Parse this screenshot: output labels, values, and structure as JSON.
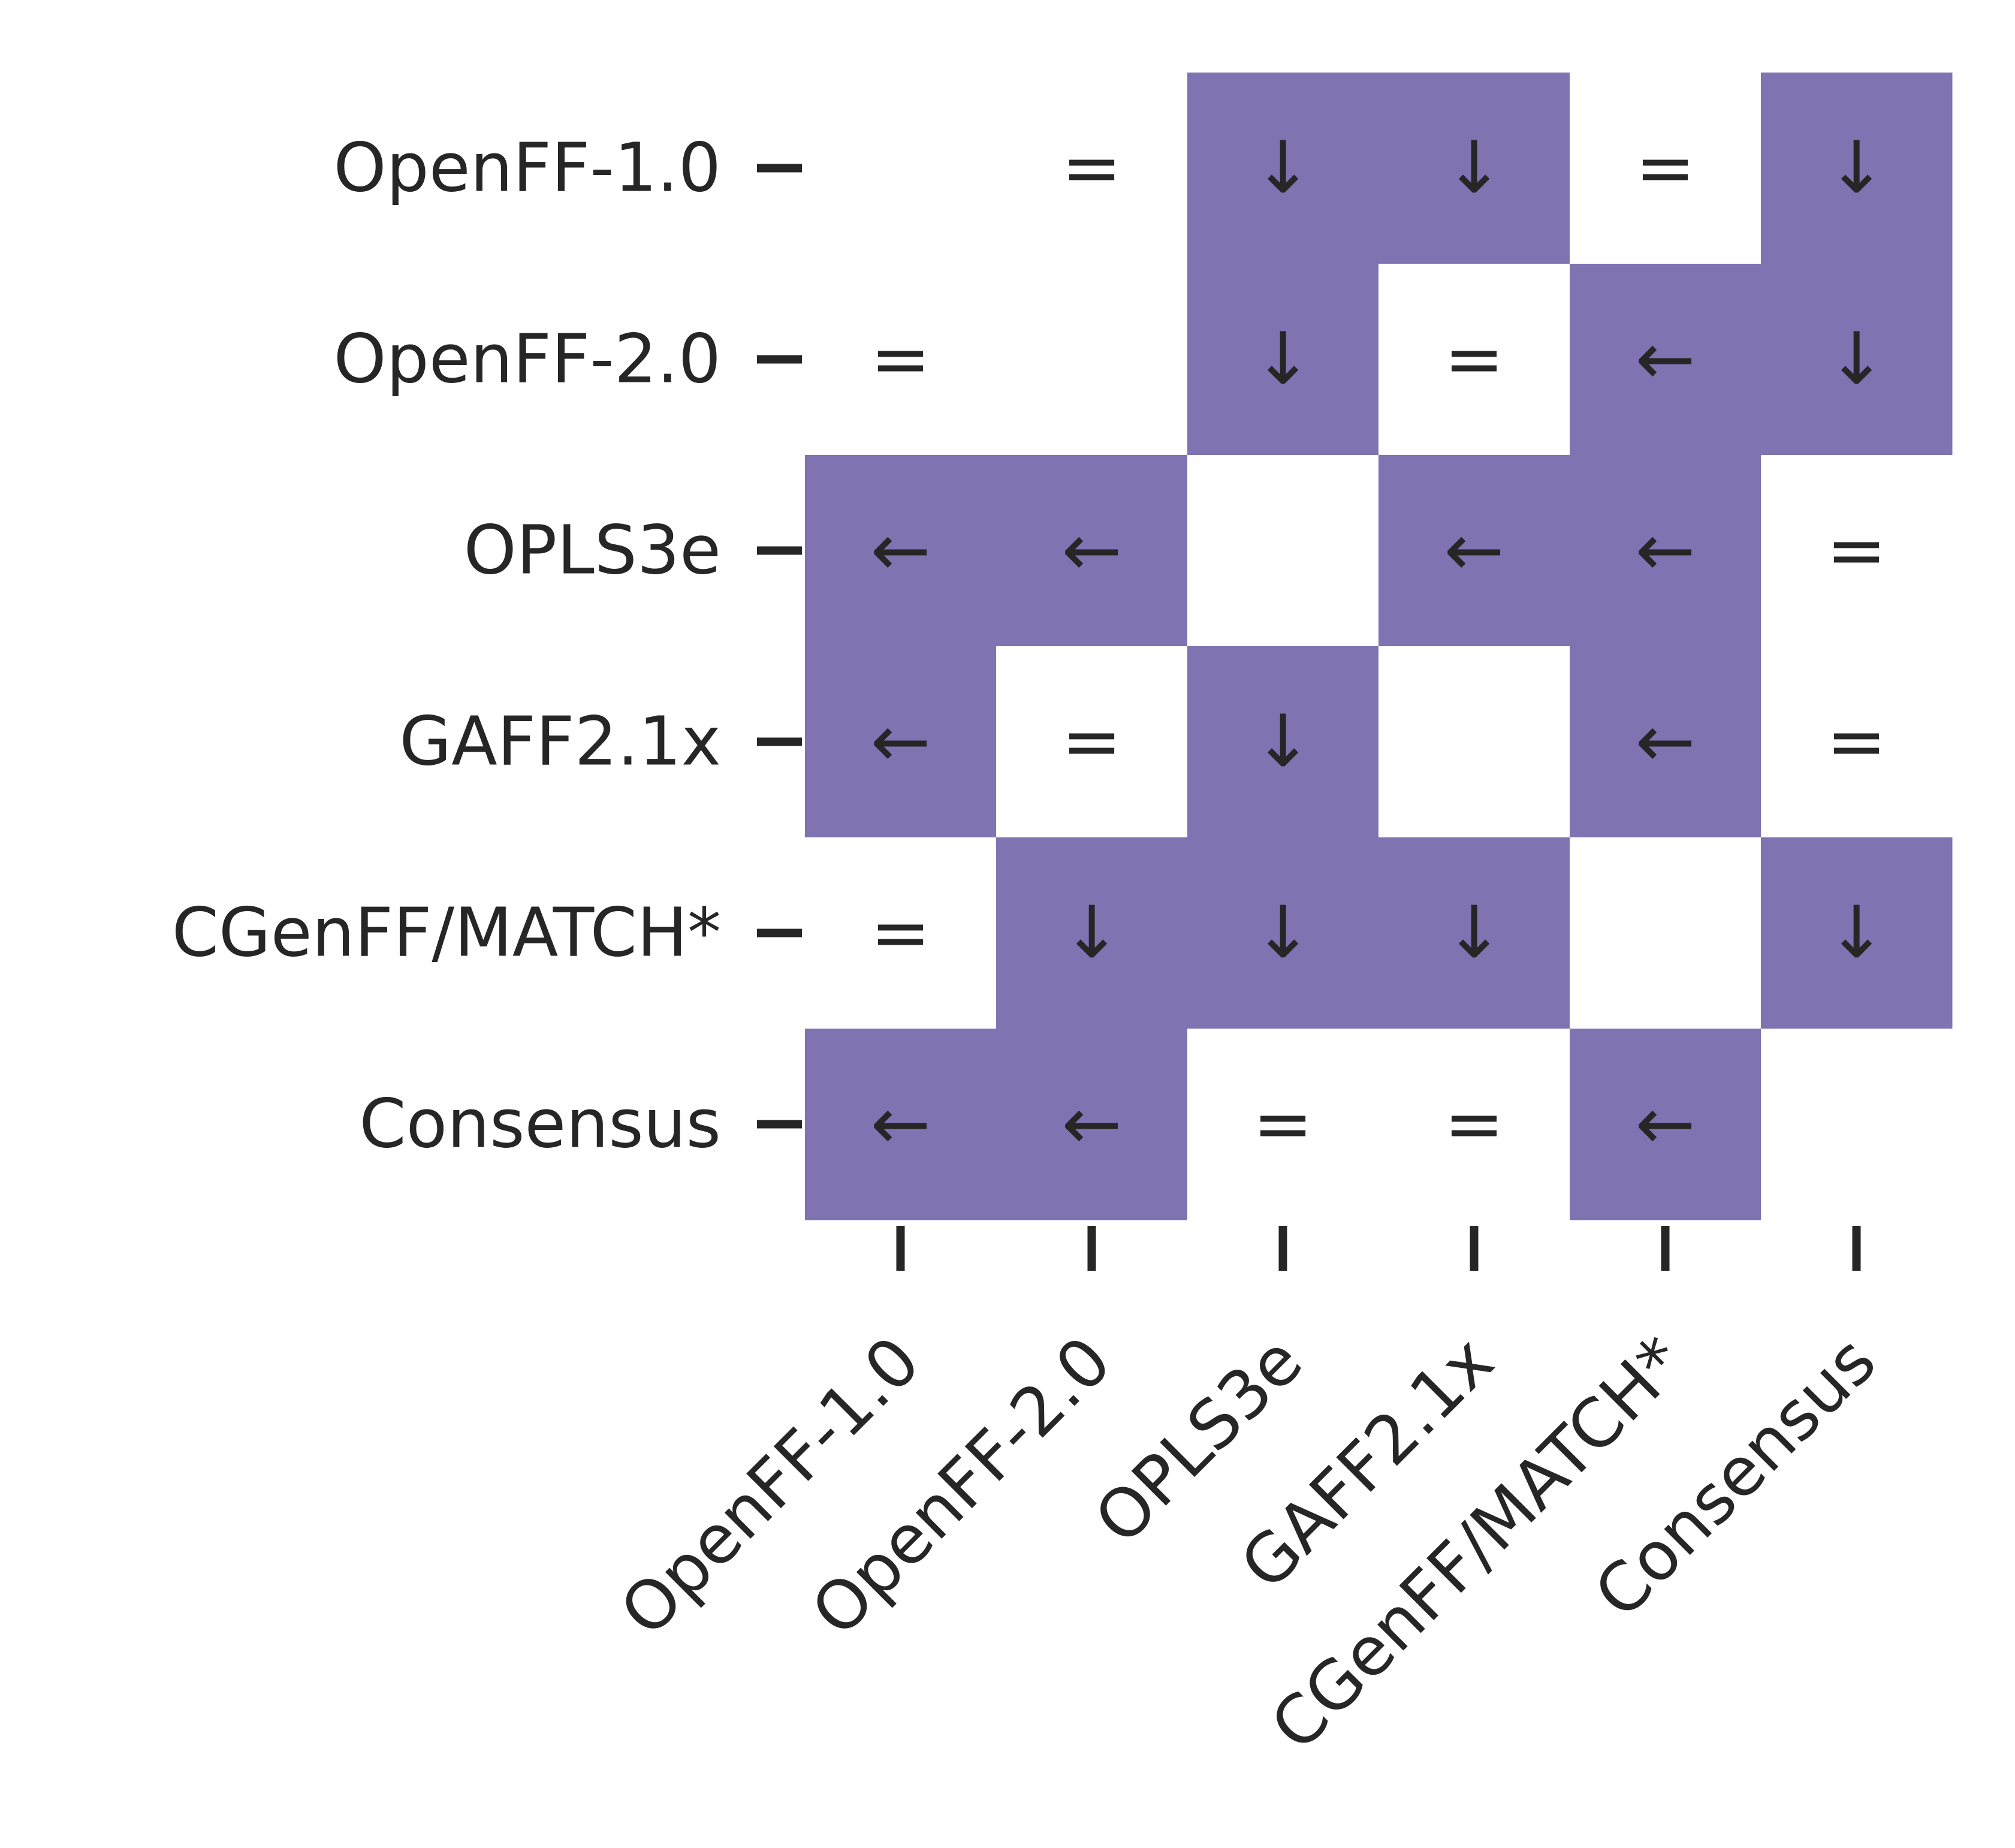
{
  "chart_data": {
    "type": "heatmap",
    "title": "",
    "xlabel": "",
    "ylabel": "",
    "grid": false,
    "legend": "none",
    "rows": [
      "OpenFF-1.0",
      "OpenFF-2.0",
      "OPLS3e",
      "GAFF2.1x",
      "CGenFF/MATCH*",
      "Consensus"
    ],
    "columns": [
      "OpenFF-1.0",
      "OpenFF-2.0",
      "OPLS3e",
      "GAFF2.1x",
      "CGenFF/MATCH*",
      "Consensus"
    ],
    "highlight_color": "#8073b2",
    "background_color": "#ffffff",
    "text_color": "#262626",
    "cells": [
      [
        "",
        "=",
        "↓",
        "↓",
        "=",
        "↓"
      ],
      [
        "=",
        "",
        "↓",
        "=",
        "←",
        "↓"
      ],
      [
        "←",
        "←",
        "",
        "←",
        "←",
        "="
      ],
      [
        "←",
        "=",
        "↓",
        "",
        "←",
        "="
      ],
      [
        "=",
        "↓",
        "↓",
        "↓",
        "",
        "↓"
      ],
      [
        "←",
        "←",
        "=",
        "=",
        "←",
        ""
      ]
    ],
    "shaded": [
      [
        false,
        false,
        true,
        true,
        false,
        true
      ],
      [
        false,
        false,
        true,
        false,
        true,
        true
      ],
      [
        true,
        true,
        false,
        true,
        true,
        false
      ],
      [
        true,
        false,
        true,
        false,
        true,
        false
      ],
      [
        false,
        true,
        true,
        true,
        false,
        true
      ],
      [
        true,
        true,
        false,
        false,
        true,
        false
      ]
    ]
  }
}
